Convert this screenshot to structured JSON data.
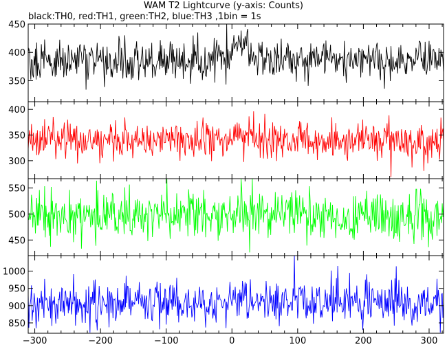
{
  "chart_data": {
    "type": "line",
    "title": "WAM T2 Lightcurve (y-axis: Counts)",
    "subtitle": "black:TH0, red:TH1, green:TH2, blue:TH3 ,1bin = 1s",
    "x_range": [
      -310,
      322
    ],
    "x_ticks": [
      -300,
      -200,
      -100,
      0,
      100,
      200,
      300
    ],
    "x_tick_labels": [
      "−300",
      "−200",
      "−100",
      "0",
      "100",
      "200",
      "300"
    ],
    "grid": false,
    "panels": [
      {
        "series": "TH0",
        "color": "#000000",
        "ylim": [
          313,
          450
        ],
        "y_ticks": [
          350,
          400,
          450
        ],
        "y_tick_labels": [
          "350",
          "400",
          "450"
        ],
        "mean": 385,
        "noise_sd": 18,
        "min": 318,
        "max": 450,
        "features": [
          {
            "x_from": 0,
            "x_to": 25,
            "level": 420
          }
        ]
      },
      {
        "series": "TH1",
        "color": "#ff0000",
        "ylim": [
          265,
          415
        ],
        "y_ticks": [
          300,
          350,
          400
        ],
        "y_tick_labels": [
          "300",
          "350",
          "400"
        ],
        "mean": 340,
        "noise_sd": 18,
        "min": 268,
        "max": 415,
        "spikes": [
          {
            "x": 242,
            "value": 268
          },
          {
            "x": 292,
            "value": 280
          }
        ]
      },
      {
        "series": "TH2",
        "color": "#00ff00",
        "ylim": [
          420,
          568
        ],
        "y_ticks": [
          450,
          500,
          550
        ],
        "y_tick_labels": [
          "450",
          "500",
          "550"
        ],
        "mean": 497,
        "noise_sd": 24,
        "min": 425,
        "max": 568
      },
      {
        "series": "TH3",
        "color": "#0000ff",
        "ylim": [
          820,
          1045
        ],
        "y_ticks": [
          850,
          900,
          950,
          1000
        ],
        "y_tick_labels": [
          "850",
          "900",
          "950",
          "1000"
        ],
        "mean": 908,
        "noise_sd": 30,
        "min": 822,
        "max": 1045,
        "spikes": [
          {
            "x": 95,
            "value": 1045
          }
        ]
      }
    ]
  }
}
